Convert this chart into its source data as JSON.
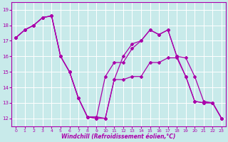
{
  "title": "",
  "xlabel": "Windchill (Refroidissement éolien,°C)",
  "ylabel": "",
  "bg_color": "#c8eaea",
  "grid_color": "#ffffff",
  "line_color": "#aa00aa",
  "marker": "D",
  "markersize": 2.0,
  "linewidth": 0.9,
  "ylim": [
    11.5,
    19.5
  ],
  "xlim": [
    -0.5,
    23.5
  ],
  "yticks": [
    12,
    13,
    14,
    15,
    16,
    17,
    18,
    19
  ],
  "xticks": [
    0,
    1,
    2,
    3,
    4,
    5,
    6,
    7,
    8,
    9,
    10,
    11,
    12,
    13,
    14,
    15,
    16,
    17,
    18,
    19,
    20,
    21,
    22,
    23
  ],
  "series": [
    [
      17.2,
      17.7,
      18.0,
      18.5,
      18.6,
      16.0,
      15.0,
      13.3,
      12.1,
      12.0,
      12.0,
      14.5,
      14.5,
      14.7,
      14.7,
      15.6,
      15.6,
      15.9,
      15.9,
      14.7,
      13.1,
      13.0,
      13.0,
      12.0
    ],
    [
      17.2,
      17.7,
      18.0,
      18.5,
      18.6,
      16.0,
      15.0,
      13.3,
      12.1,
      12.0,
      14.7,
      15.6,
      15.6,
      16.5,
      17.0,
      17.7,
      17.4,
      17.7,
      16.0,
      14.7,
      13.1,
      13.0,
      13.0,
      12.0
    ],
    [
      17.2,
      17.7,
      18.0,
      18.5,
      18.6,
      16.0,
      15.0,
      13.3,
      12.1,
      12.1,
      12.0,
      14.5,
      16.0,
      16.8,
      17.0,
      17.7,
      17.4,
      17.7,
      16.0,
      15.9,
      14.7,
      13.1,
      13.0,
      12.0
    ]
  ]
}
